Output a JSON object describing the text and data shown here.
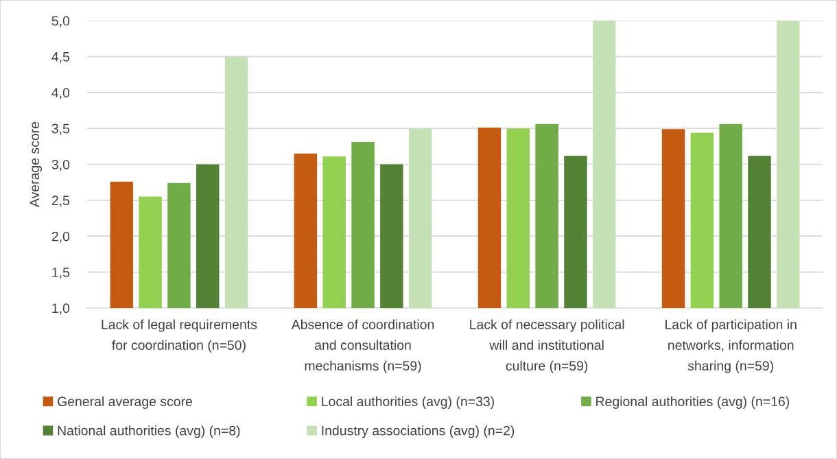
{
  "chart_data": {
    "type": "bar",
    "categories": [
      "Lack of legal requirements\nfor coordination (n=50)",
      "Absence of coordination\nand consultation\nmechanisms (n=59)",
      "Lack of necessary political\nwill and institutional\nculture (n=59)",
      "Lack of participation in\nnetworks, information\nsharing (n=59)"
    ],
    "series": [
      {
        "name": "General average score",
        "color": "#c55a11",
        "values": [
          2.76,
          3.15,
          3.51,
          3.49
        ]
      },
      {
        "name": "Local authorities (avg) (n=33)",
        "color": "#92d050",
        "values": [
          2.55,
          3.11,
          3.5,
          3.44
        ]
      },
      {
        "name": "Regional authorities (avg) (n=16)",
        "color": "#70ad47",
        "values": [
          2.74,
          3.31,
          3.56,
          3.56
        ]
      },
      {
        "name": "National authorities (avg) (n=8)",
        "color": "#548235",
        "values": [
          3.0,
          3.0,
          3.12,
          3.12
        ]
      },
      {
        "name": "Industry associations (avg) (n=2)",
        "color": "#c5e0b4",
        "values": [
          4.5,
          3.5,
          5.0,
          5.0
        ]
      }
    ],
    "ylabel": "Average score",
    "ylim": [
      1,
      5
    ],
    "yticks": [
      {
        "value": 1,
        "label": "1,0"
      },
      {
        "value": 1.5,
        "label": "1,5"
      },
      {
        "value": 2,
        "label": "2,0"
      },
      {
        "value": 2.5,
        "label": "2,5"
      },
      {
        "value": 3,
        "label": "3,0"
      },
      {
        "value": 3.5,
        "label": "3,5"
      },
      {
        "value": 4,
        "label": "4,0"
      },
      {
        "value": 4.5,
        "label": "4,5"
      },
      {
        "value": 5,
        "label": "5,0"
      }
    ],
    "grid": "y",
    "legend": "bottom"
  }
}
